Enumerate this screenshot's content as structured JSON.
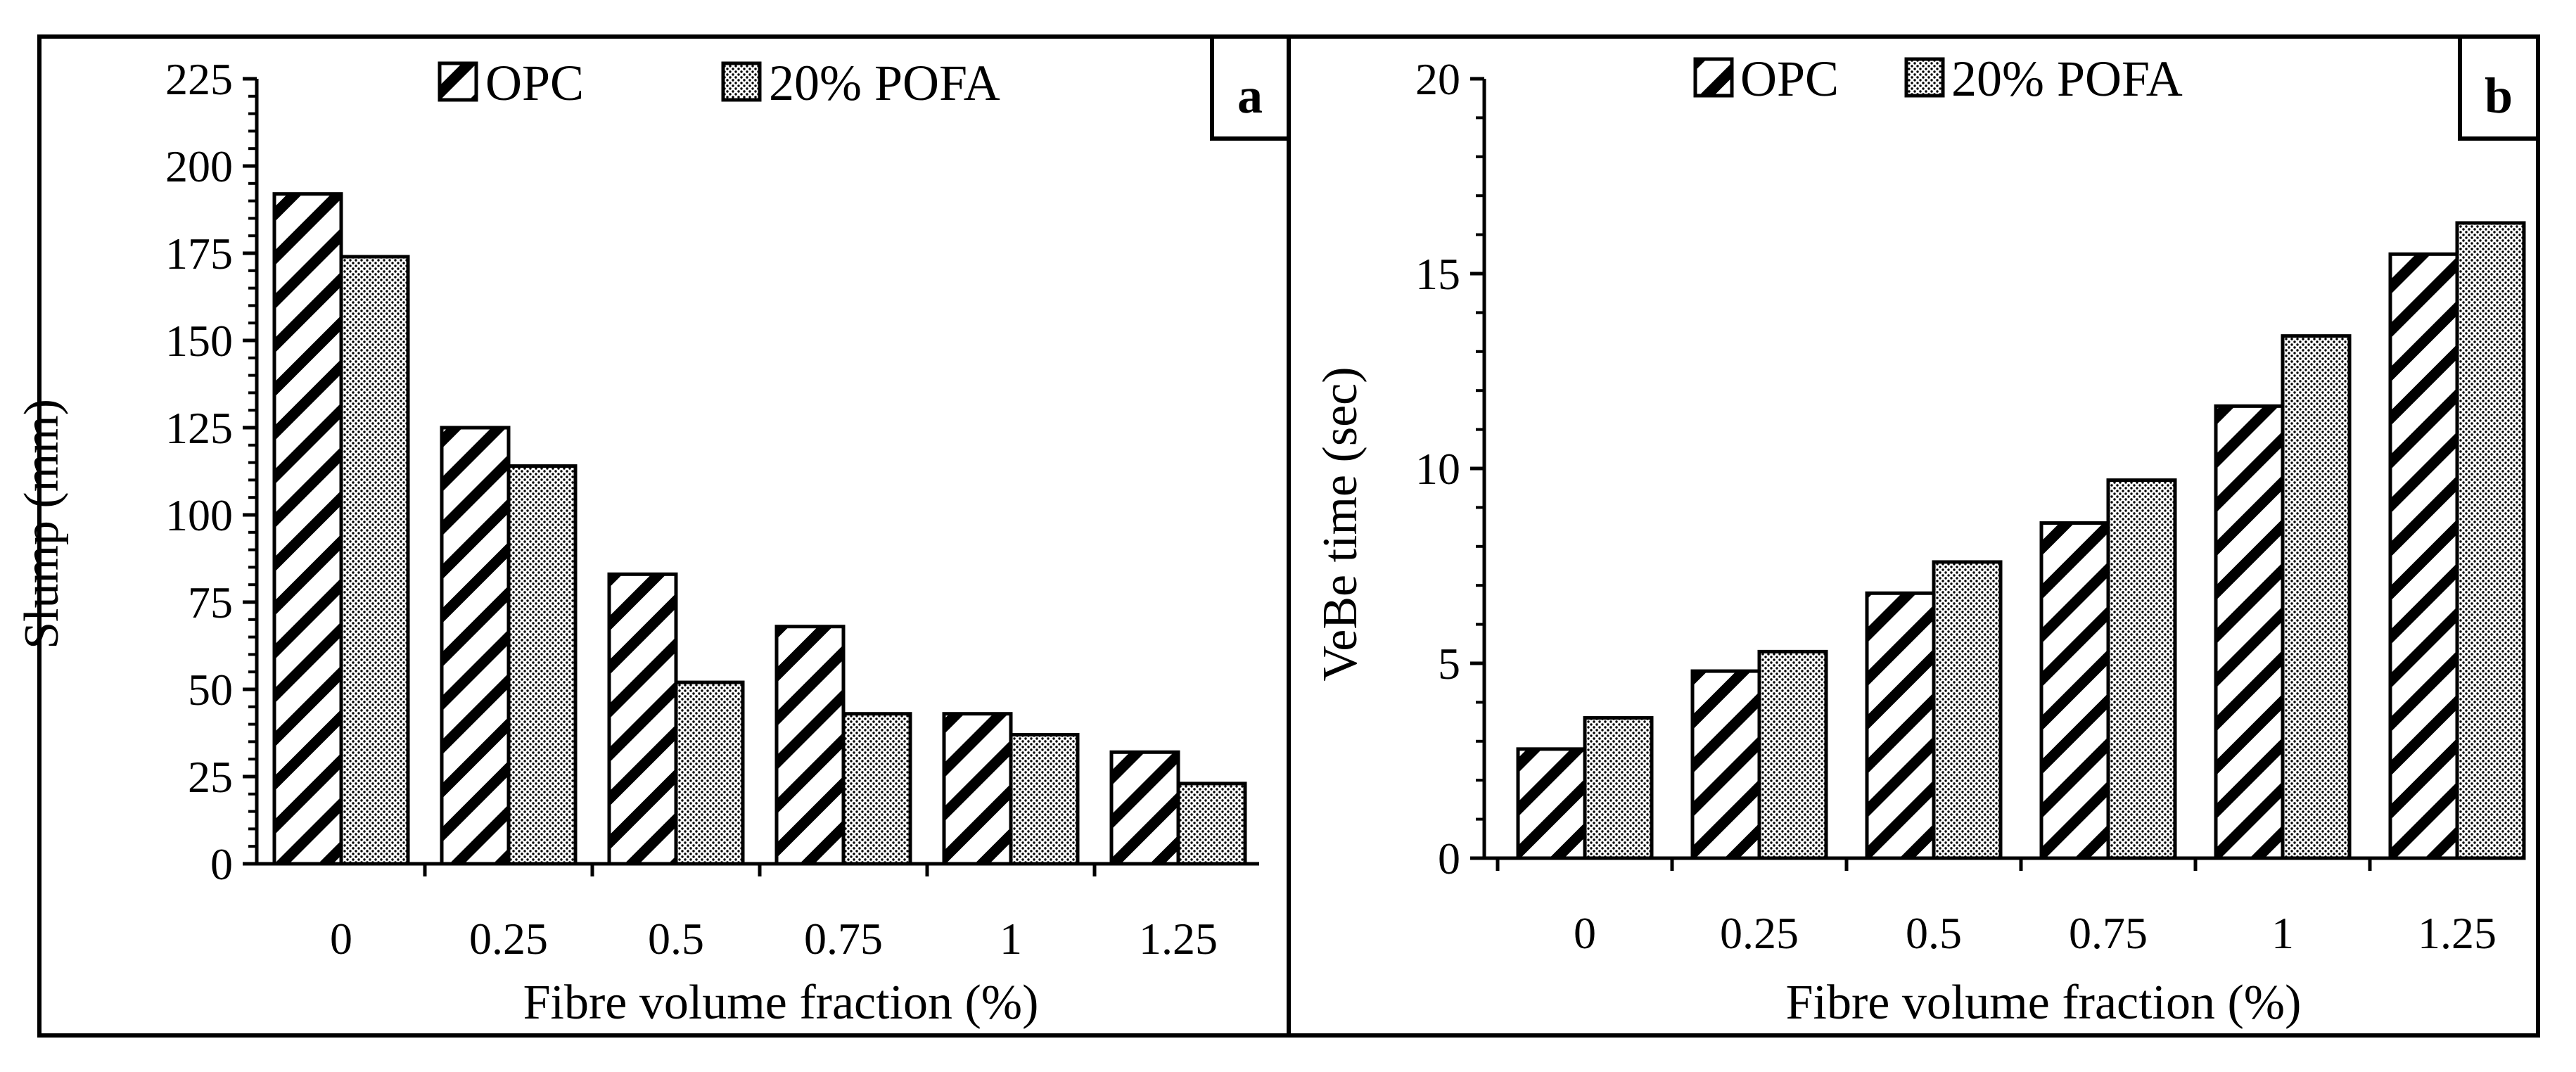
{
  "chart_data": [
    {
      "type": "bar",
      "panel_label": "a",
      "categories": [
        "0",
        "0.25",
        "0.5",
        "0.75",
        "1",
        "1.25"
      ],
      "series": [
        {
          "name": "OPC",
          "pattern": "diagonal-hatch",
          "values": [
            192,
            125,
            83,
            68,
            43,
            32
          ]
        },
        {
          "name": "20% POFA",
          "pattern": "dotted",
          "values": [
            174,
            114,
            52,
            43,
            37,
            23
          ]
        }
      ],
      "xlabel": "Fibre volume fraction (%)",
      "ylabel": "Slump (mm)",
      "ylim": [
        0,
        225
      ],
      "yticks": [
        0,
        25,
        50,
        75,
        100,
        125,
        150,
        175,
        200,
        225
      ],
      "legend_position": "top"
    },
    {
      "type": "bar",
      "panel_label": "b",
      "categories": [
        "0",
        "0.25",
        "0.5",
        "0.75",
        "1",
        "1.25"
      ],
      "series": [
        {
          "name": "OPC",
          "pattern": "diagonal-hatch",
          "values": [
            2.8,
            4.8,
            6.8,
            8.6,
            11.6,
            15.5
          ]
        },
        {
          "name": "20% POFA",
          "pattern": "dotted",
          "values": [
            3.6,
            5.3,
            7.6,
            9.7,
            13.4,
            16.3
          ]
        }
      ],
      "xlabel": "Fibre volume fraction (%)",
      "ylabel": "VeBe time (sec)",
      "ylim": [
        0,
        20
      ],
      "yticks": [
        0,
        5,
        10,
        15,
        20
      ],
      "legend_position": "top"
    }
  ],
  "colors": {
    "ink": "#000000",
    "background": "#ffffff"
  }
}
